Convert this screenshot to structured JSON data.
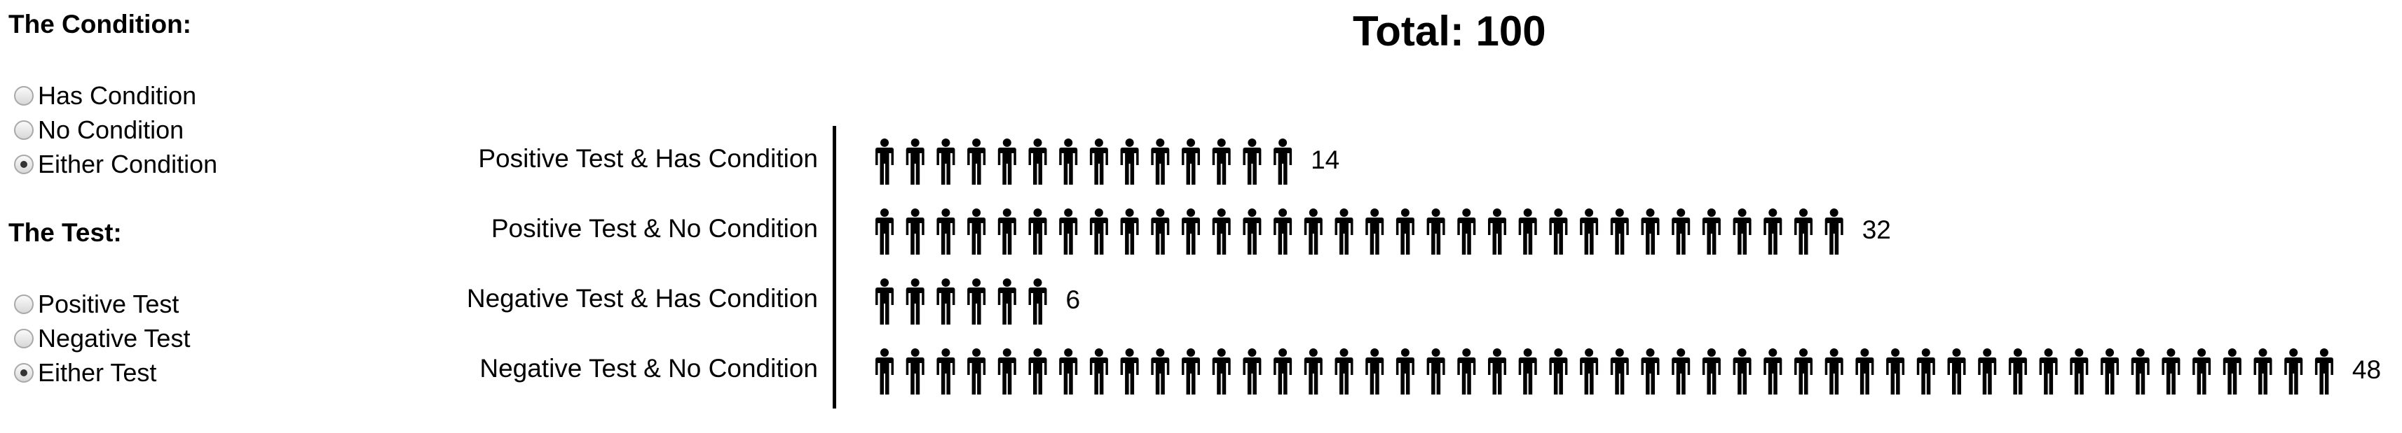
{
  "controls": {
    "condition": {
      "title": "The Condition:",
      "options": [
        {
          "label": "Has Condition",
          "checked": false
        },
        {
          "label": "No Condition",
          "checked": false
        },
        {
          "label": "Either Condition",
          "checked": true
        }
      ]
    },
    "test": {
      "title": "The Test:",
      "options": [
        {
          "label": "Positive Test",
          "checked": false
        },
        {
          "label": "Negative Test",
          "checked": false
        },
        {
          "label": "Either Test",
          "checked": true
        }
      ]
    }
  },
  "icon_name": "person-icon",
  "chart_data": {
    "type": "bar",
    "title": "Total: 100",
    "categories": [
      "Positive Test & Has Condition",
      "Positive Test & No Condition",
      "Negative Test & Has Condition",
      "Negative Test & No Condition"
    ],
    "values": [
      14,
      32,
      6,
      48
    ],
    "xlabel": "",
    "ylabel": "",
    "grid": false,
    "legend": "none"
  }
}
